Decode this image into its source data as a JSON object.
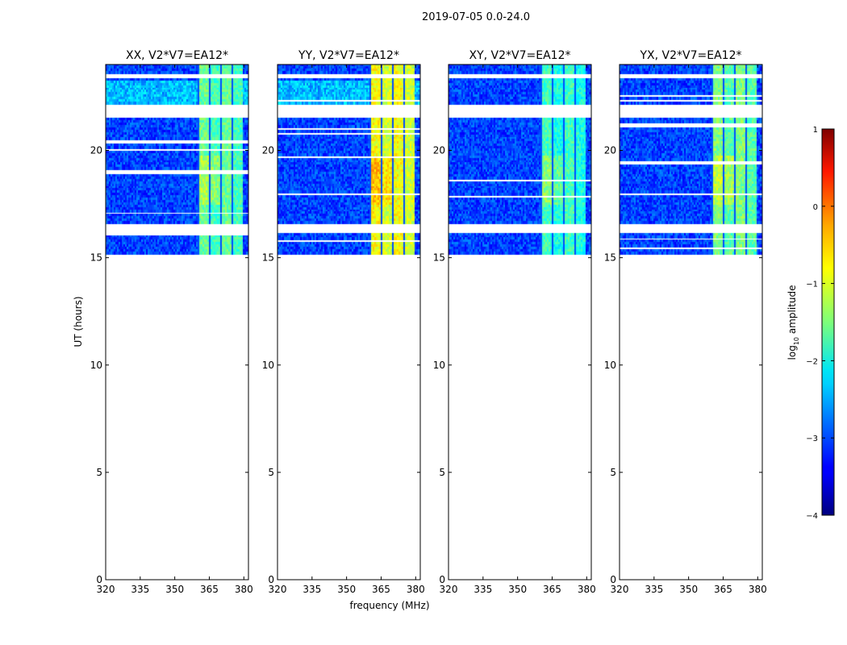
{
  "figure_title": "2019-07-05 0.0-24.0",
  "chart_data": {
    "type": "heatmap",
    "title": "2019-07-05 0.0-24.0",
    "xlabel": "frequency (MHz)",
    "ylabel": "UT (hours)",
    "xlim": [
      320,
      382
    ],
    "ylim": [
      0,
      24
    ],
    "xticks": [
      320,
      335,
      350,
      365,
      380
    ],
    "yticks": [
      0,
      5,
      10,
      15,
      20
    ],
    "panels": [
      {
        "title": "XX, V2*V7=EA12*",
        "pol": "XX",
        "rfi_peak": -1.0
      },
      {
        "title": "YY, V2*V7=EA12*",
        "pol": "YY",
        "rfi_peak": -0.3
      },
      {
        "title": "XY, V2*V7=EA12*",
        "pol": "XY",
        "rfi_peak": -1.2
      },
      {
        "title": "YX, V2*V7=EA12*",
        "pol": "YX",
        "rfi_peak": -0.9
      }
    ],
    "data_time_range": [
      15.2,
      24.0
    ],
    "flagged_gaps_hours": [
      [
        21.5,
        22.1
      ],
      [
        16.2,
        16.6
      ],
      [
        23.35,
        23.55
      ]
    ],
    "rfi_band_mhz": [
      360.5,
      380
    ],
    "colorbar": {
      "label_text": "log",
      "label_sub": "10",
      "label_rest": " amplitude",
      "range": [
        -4,
        1
      ],
      "ticks": [
        -4,
        -3,
        -2,
        -1,
        0,
        1
      ],
      "colormap": "jet"
    }
  },
  "tick_labels": {
    "x": [
      "320",
      "335",
      "350",
      "365",
      "380"
    ],
    "y": [
      "0",
      "5",
      "10",
      "15",
      "20"
    ],
    "cb": [
      "−4",
      "−3",
      "−2",
      "−1",
      "0",
      "1"
    ]
  }
}
